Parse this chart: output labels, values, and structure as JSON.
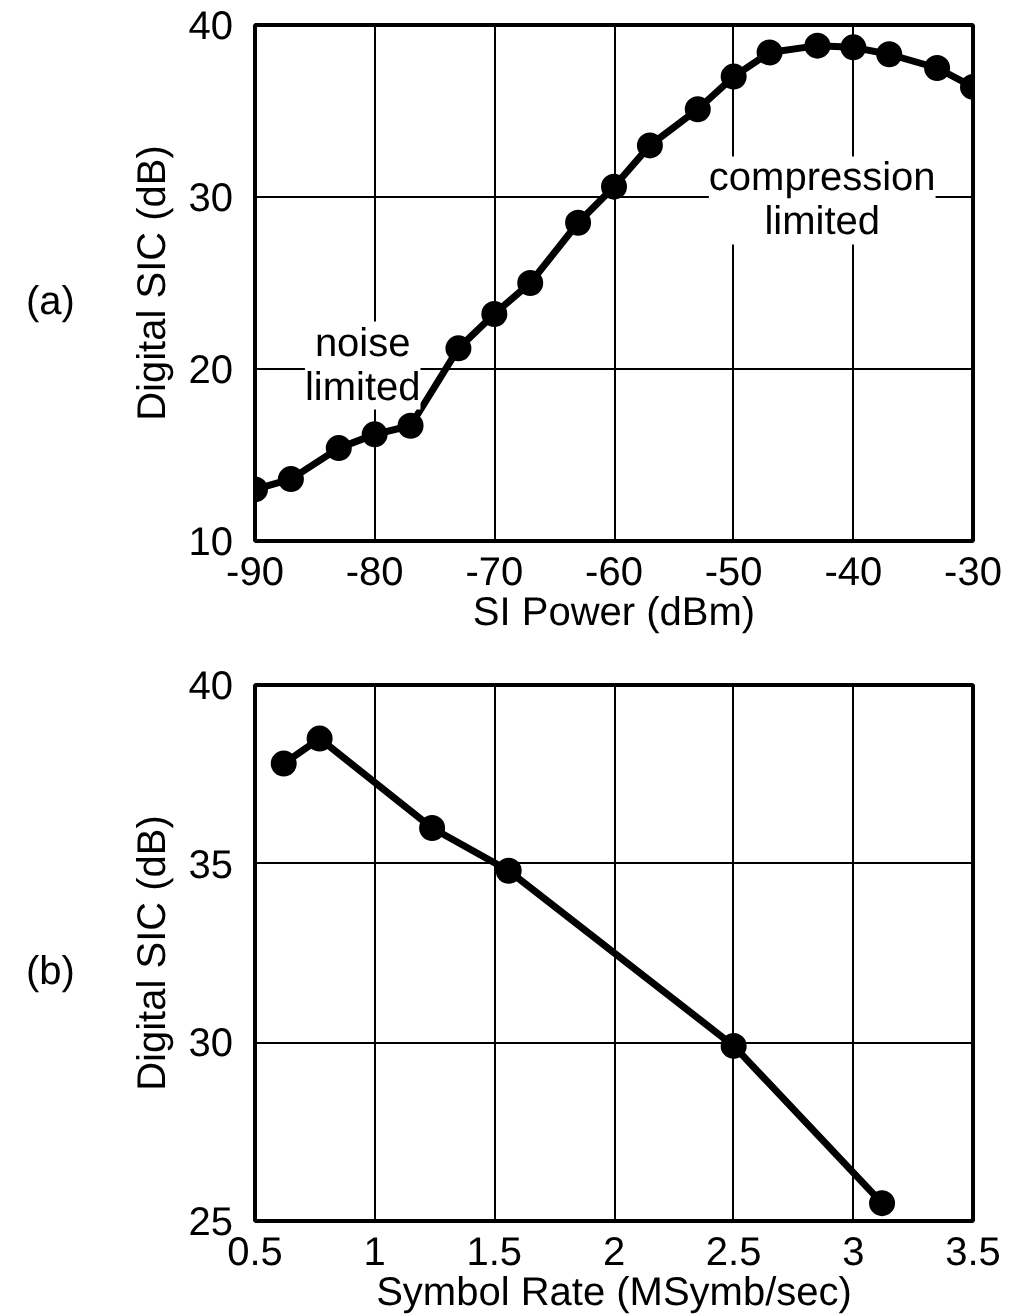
{
  "chart_data": [
    {
      "type": "line",
      "xlabel": "SI Power (dBm)",
      "ylabel": "Digital SIC (dB)",
      "x": [
        -90,
        -87,
        -83,
        -80,
        -77,
        -73,
        -70,
        -67,
        -63,
        -60,
        -57,
        -53,
        -50,
        -47,
        -43,
        -40,
        -37,
        -33,
        -30
      ],
      "series": [
        {
          "color": "#000000",
          "values": [
            13.0,
            13.6,
            15.4,
            16.2,
            16.7,
            21.2,
            23.2,
            25.0,
            28.5,
            30.6,
            33.0,
            35.1,
            37.0,
            38.4,
            38.8,
            38.7,
            38.3,
            37.5,
            36.4
          ]
        }
      ],
      "xlim": [
        -90,
        -30
      ],
      "xticks": [
        -90,
        -80,
        -70,
        -60,
        -50,
        -40,
        -30
      ],
      "ylim": [
        10,
        40
      ],
      "yticks": [
        10,
        20,
        30,
        40
      ],
      "grid": true,
      "marker": "circle",
      "line_style": "solid",
      "annotations": [
        "(a)",
        "noise\nlimited",
        "compression\nlimited"
      ]
    },
    {
      "type": "line",
      "xlabel": "Symbol Rate (MSymb/sec)",
      "ylabel": "Digital SIC (dB)",
      "x": [
        0.62,
        0.77,
        1.24,
        1.56,
        2.5,
        3.12
      ],
      "series": [
        {
          "color": "#000000",
          "values": [
            37.8,
            38.5,
            36.0,
            34.8,
            29.9,
            25.5
          ]
        }
      ],
      "xlim": [
        0.5,
        3.5
      ],
      "xticks": [
        {
          "value": 0.5,
          "label": "0.5"
        },
        1,
        {
          "value": 1.5,
          "label": "1.5"
        },
        2,
        {
          "value": 2.5,
          "label": "2.5"
        },
        3,
        {
          "value": 3.5,
          "label": "3.5"
        }
      ],
      "ylim": [
        25,
        40
      ],
      "yticks": [
        25,
        30,
        35,
        40
      ],
      "grid": true,
      "marker": "circle",
      "line_style": "solid",
      "annotations": [
        "(b)"
      ]
    }
  ]
}
